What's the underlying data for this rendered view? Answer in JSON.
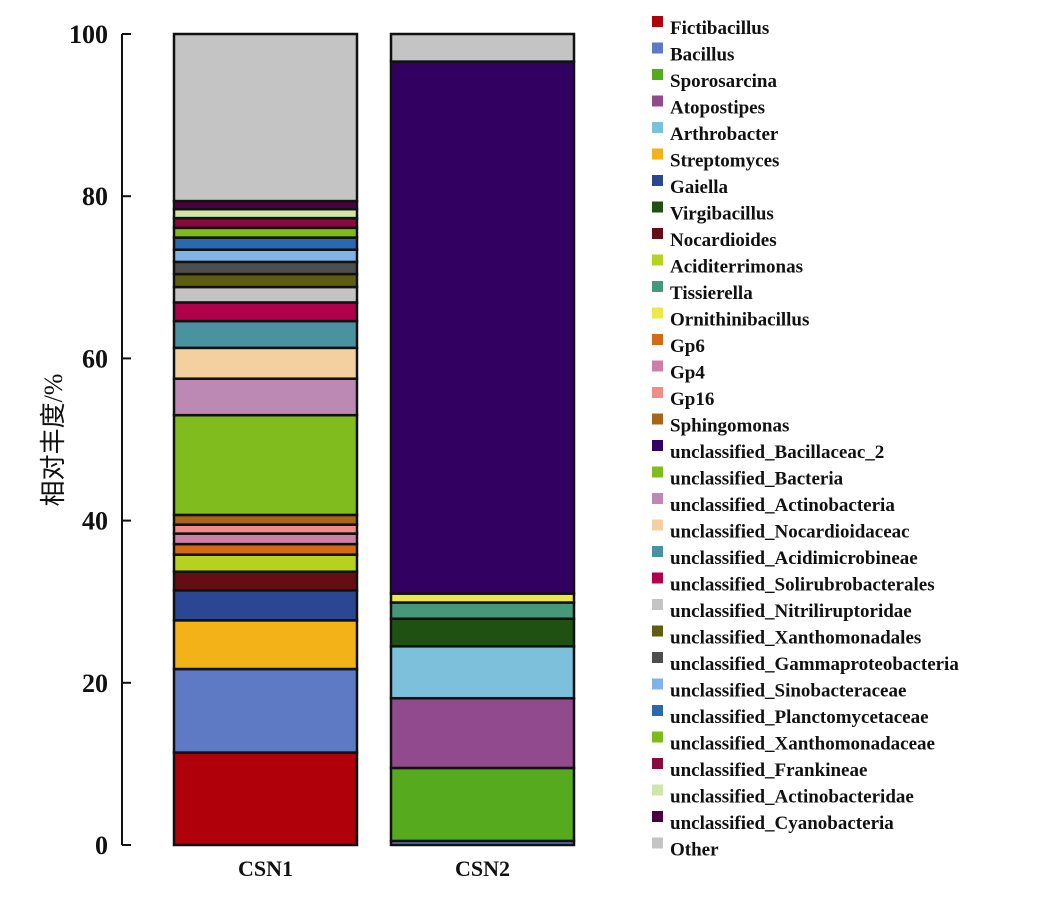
{
  "chart_data": {
    "type": "bar",
    "stacked": true,
    "title": "",
    "xlabel": "",
    "ylabel": "相对丰度/%",
    "ylim": [
      0,
      100
    ],
    "yticks": [
      0,
      20,
      40,
      60,
      80,
      100
    ],
    "categories": [
      "CSN1",
      "CSN2"
    ],
    "legend_position": "right",
    "series": [
      {
        "name": "Fictibacillus",
        "color": "#b0000a",
        "values": [
          11.4,
          0
        ]
      },
      {
        "name": "Bacillus",
        "color": "#5e7ac4",
        "values": [
          10.3,
          0.5
        ]
      },
      {
        "name": "Sporosarcina",
        "color": "#55aa1e",
        "values": [
          0,
          9.0
        ]
      },
      {
        "name": "Atopostipes",
        "color": "#924a8e",
        "values": [
          0,
          8.6
        ]
      },
      {
        "name": "Arthrobacter",
        "color": "#7cc0dc",
        "values": [
          0,
          6.4
        ]
      },
      {
        "name": "Streptomyces",
        "color": "#f2b218",
        "values": [
          6.0,
          0
        ]
      },
      {
        "name": "Gaiella",
        "color": "#2b4693",
        "values": [
          3.7,
          0
        ]
      },
      {
        "name": "Virgibacillus",
        "color": "#1f5212",
        "values": [
          0,
          3.4
        ]
      },
      {
        "name": "Nocardioides",
        "color": "#640e14",
        "values": [
          2.3,
          0
        ]
      },
      {
        "name": "Aciditerrimonas",
        "color": "#b6d11e",
        "values": [
          2.1,
          0
        ]
      },
      {
        "name": "Tissierella",
        "color": "#47987a",
        "values": [
          0,
          2.0
        ]
      },
      {
        "name": "Ornithinibacillus",
        "color": "#ede84a",
        "values": [
          0,
          1.1
        ]
      },
      {
        "name": "Gp6",
        "color": "#d66a14",
        "values": [
          1.3,
          0
        ]
      },
      {
        "name": "Gp4",
        "color": "#cc80a8",
        "values": [
          1.3,
          0
        ]
      },
      {
        "name": "Gp16",
        "color": "#f08c86",
        "values": [
          1.1,
          0
        ]
      },
      {
        "name": "Sphingomonas",
        "color": "#a8661a",
        "values": [
          1.2,
          0
        ]
      },
      {
        "name": "unclassified_Bacillaceac_2",
        "color": "#320060",
        "values": [
          0,
          65.6
        ]
      },
      {
        "name": "unclassified_Bacteria",
        "color": "#80bc1e",
        "values": [
          12.3,
          0
        ]
      },
      {
        "name": "unclassified_Actinobacteria",
        "color": "#bc88b4",
        "values": [
          4.5,
          0
        ]
      },
      {
        "name": "unclassified_Nocardioidaceac",
        "color": "#f4d0a0",
        "values": [
          3.8,
          0
        ]
      },
      {
        "name": "unclassified_Acidimicrobineae",
        "color": "#4a92a0",
        "values": [
          3.3,
          0
        ]
      },
      {
        "name": "unclassified_Solirubrobacterales",
        "color": "#b0004c",
        "values": [
          2.3,
          0
        ]
      },
      {
        "name": "unclassified_Nitriliruptoridae",
        "color": "#c4c4c4",
        "values": [
          1.9,
          0
        ]
      },
      {
        "name": "unclassified_Xanthomonadales",
        "color": "#5e5e12",
        "values": [
          1.6,
          0
        ]
      },
      {
        "name": "unclassified_Gammaproteobacteria",
        "color": "#4e4e4e",
        "values": [
          1.5,
          0
        ]
      },
      {
        "name": "unclassified_Sinobacteraceae",
        "color": "#80b4e8",
        "values": [
          1.5,
          0
        ]
      },
      {
        "name": "unclassified_Planctomycetaceae",
        "color": "#2a68b0",
        "values": [
          1.5,
          0
        ]
      },
      {
        "name": "unclassified_Xanthomonadaceae",
        "color": "#7cbc1a",
        "values": [
          1.2,
          0
        ]
      },
      {
        "name": "unclassified_Frankineae",
        "color": "#8a0a3e",
        "values": [
          1.2,
          0
        ]
      },
      {
        "name": "unclassified_Actinobacteridae",
        "color": "#cfe6a8",
        "values": [
          1.1,
          0
        ]
      },
      {
        "name": "unclassified_Cyanobacteria",
        "color": "#4a0044",
        "values": [
          1.0,
          0
        ]
      },
      {
        "name": "Other",
        "color": "#c4c4c4",
        "values": [
          20.6,
          3.4
        ]
      }
    ]
  }
}
